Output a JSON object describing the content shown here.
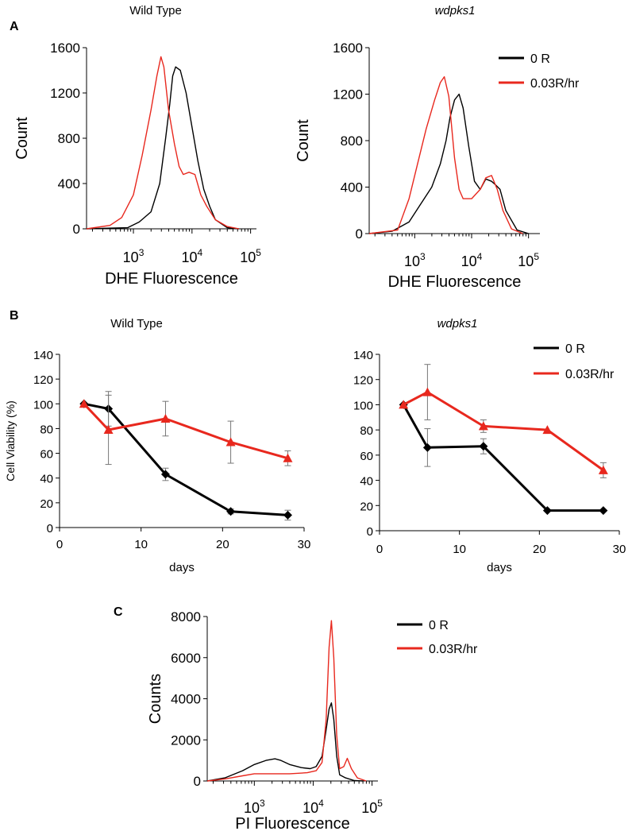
{
  "colors": {
    "control": "#000000",
    "treated": "#e8281e"
  },
  "panel_labels": [
    "A",
    "B",
    "C"
  ],
  "chart_data": [
    {
      "id": "A-wt",
      "type": "line",
      "panel": "A",
      "title": "Wild Type",
      "title_italic": false,
      "xlabel": "DHE Fluorescence",
      "ylabel": "Count",
      "xscale": "log",
      "xlim_log10": [
        2.2,
        5.1
      ],
      "xticks": [
        {
          "pow": "3",
          "v": 3
        },
        {
          "pow": "4",
          "v": 4
        },
        {
          "pow": "5",
          "v": 5
        }
      ],
      "ylim": [
        0,
        1600
      ],
      "yticks": [
        "0",
        "400",
        "800",
        "1200",
        "1600"
      ],
      "legend": null,
      "series": [
        {
          "name": "0 R",
          "color": "#000000",
          "x": [
            2.2,
            2.9,
            3.1,
            3.3,
            3.45,
            3.55,
            3.62,
            3.67,
            3.72,
            3.8,
            3.9,
            4.0,
            4.1,
            4.2,
            4.3,
            4.4,
            4.6,
            4.8
          ],
          "y": [
            0,
            10,
            60,
            150,
            400,
            800,
            1100,
            1350,
            1430,
            1400,
            1200,
            900,
            600,
            350,
            200,
            80,
            10,
            0
          ]
        },
        {
          "name": "0.03R/hr",
          "color": "#e8281e",
          "x": [
            2.2,
            2.6,
            2.8,
            3.0,
            3.15,
            3.3,
            3.4,
            3.47,
            3.52,
            3.6,
            3.7,
            3.78,
            3.85,
            3.95,
            4.05,
            4.15,
            4.25,
            4.4,
            4.6,
            4.8
          ],
          "y": [
            0,
            30,
            100,
            300,
            650,
            1050,
            1350,
            1520,
            1430,
            1050,
            750,
            550,
            480,
            500,
            480,
            300,
            200,
            80,
            20,
            0
          ]
        }
      ]
    },
    {
      "id": "A-mut",
      "type": "line",
      "panel": "A",
      "title": "wdpks1",
      "title_italic": true,
      "xlabel": "DHE Fluorescence",
      "ylabel": "Count",
      "xscale": "log",
      "xlim_log10": [
        2.2,
        5.2
      ],
      "xticks": [
        {
          "pow": "3",
          "v": 3
        },
        {
          "pow": "4",
          "v": 4
        },
        {
          "pow": "5",
          "v": 5
        }
      ],
      "ylim": [
        0,
        1600
      ],
      "yticks": [
        "0",
        "400",
        "800",
        "1200",
        "1600"
      ],
      "legend": [
        {
          "label": "0 R",
          "color": "#000000"
        },
        {
          "label": "0.03R/hr",
          "color": "#e8281e"
        }
      ],
      "series": [
        {
          "name": "0 R",
          "color": "#000000",
          "x": [
            2.2,
            2.6,
            2.9,
            3.1,
            3.3,
            3.45,
            3.55,
            3.62,
            3.7,
            3.78,
            3.85,
            3.95,
            4.05,
            4.15,
            4.25,
            4.35,
            4.42,
            4.5,
            4.6,
            4.8,
            5.0
          ],
          "y": [
            0,
            20,
            100,
            250,
            400,
            600,
            800,
            1000,
            1150,
            1200,
            1080,
            750,
            450,
            380,
            470,
            450,
            420,
            380,
            200,
            30,
            0
          ]
        },
        {
          "name": "0.03R/hr",
          "color": "#e8281e",
          "x": [
            2.2,
            2.7,
            2.9,
            3.05,
            3.2,
            3.35,
            3.45,
            3.52,
            3.6,
            3.7,
            3.78,
            3.85,
            4.0,
            4.15,
            4.25,
            4.35,
            4.45,
            4.55,
            4.7,
            4.9
          ],
          "y": [
            0,
            30,
            300,
            600,
            900,
            1150,
            1300,
            1350,
            1180,
            650,
            380,
            300,
            300,
            380,
            480,
            500,
            380,
            200,
            40,
            0
          ]
        }
      ]
    },
    {
      "id": "B-wt",
      "type": "line",
      "panel": "B",
      "title": "Wild Type",
      "title_italic": false,
      "xlabel": "days",
      "ylabel": "Cell Viability (%)",
      "xlim": [
        0,
        30
      ],
      "xticks": [
        "0",
        "10",
        "20",
        "30"
      ],
      "ylim": [
        0,
        140
      ],
      "yticks": [
        "0",
        "20",
        "40",
        "60",
        "80",
        "100",
        "120",
        "140"
      ],
      "legend": null,
      "series": [
        {
          "name": "0 R",
          "color": "#000000",
          "marker": "diamond",
          "x": [
            3,
            6,
            13,
            21,
            28
          ],
          "y": [
            100,
            96,
            43,
            13,
            10
          ],
          "err": [
            0,
            14,
            5,
            2,
            4
          ]
        },
        {
          "name": "0.03R/hr",
          "color": "#e8281e",
          "marker": "triangle",
          "x": [
            3,
            6,
            13,
            21,
            28
          ],
          "y": [
            100,
            79,
            88,
            69,
            56
          ],
          "err": [
            0,
            28,
            14,
            17,
            6
          ]
        }
      ]
    },
    {
      "id": "B-mut",
      "type": "line",
      "panel": "B",
      "title": "wdpks1",
      "title_italic": true,
      "xlabel": "days",
      "ylabel": "",
      "xlim": [
        0,
        30
      ],
      "xticks": [
        "0",
        "10",
        "20",
        "30"
      ],
      "ylim": [
        0,
        140
      ],
      "yticks": [
        "0",
        "20",
        "40",
        "60",
        "80",
        "100",
        "120",
        "140"
      ],
      "legend": [
        {
          "label": "0 R",
          "color": "#000000"
        },
        {
          "label": "0.03R/hr",
          "color": "#e8281e"
        }
      ],
      "series": [
        {
          "name": "0 R",
          "color": "#000000",
          "marker": "diamond",
          "x": [
            3,
            6,
            13,
            21,
            28
          ],
          "y": [
            100,
            66,
            67,
            16,
            16
          ],
          "err": [
            0,
            15,
            6,
            0,
            0
          ]
        },
        {
          "name": "0.03R/hr",
          "color": "#e8281e",
          "marker": "triangle",
          "x": [
            3,
            6,
            13,
            21,
            28
          ],
          "y": [
            100,
            110,
            83,
            80,
            48
          ],
          "err": [
            0,
            22,
            5,
            0,
            6
          ]
        }
      ]
    },
    {
      "id": "C",
      "type": "line",
      "panel": "C",
      "title": "",
      "title_italic": false,
      "xlabel": "PI Fluorescence",
      "ylabel": "Counts",
      "xscale": "log",
      "xlim_log10": [
        2.2,
        5.1
      ],
      "xticks": [
        {
          "pow": "3",
          "v": 3
        },
        {
          "pow": "4",
          "v": 4
        },
        {
          "pow": "5",
          "v": 5
        }
      ],
      "ylim": [
        0,
        8000
      ],
      "yticks": [
        "0",
        "2000",
        "4000",
        "6000",
        "8000"
      ],
      "legend": [
        {
          "label": "0 R",
          "color": "#000000"
        },
        {
          "label": "0.03R/hr",
          "color": "#e8281e"
        }
      ],
      "series": [
        {
          "name": "0 R",
          "color": "#000000",
          "x": [
            2.2,
            2.5,
            2.8,
            3.0,
            3.2,
            3.35,
            3.45,
            3.6,
            3.8,
            3.95,
            4.05,
            4.15,
            4.22,
            4.27,
            4.31,
            4.35,
            4.4,
            4.45,
            4.55,
            4.7,
            4.85
          ],
          "y": [
            0,
            150,
            500,
            800,
            1000,
            1080,
            1000,
            800,
            650,
            600,
            700,
            1200,
            2500,
            3500,
            3800,
            3000,
            1200,
            300,
            150,
            20,
            0
          ]
        },
        {
          "name": "0.03R/hr",
          "color": "#e8281e",
          "x": [
            2.2,
            2.5,
            2.8,
            3.0,
            3.3,
            3.6,
            3.9,
            4.05,
            4.15,
            4.22,
            4.27,
            4.31,
            4.35,
            4.4,
            4.45,
            4.52,
            4.58,
            4.65,
            4.75,
            4.9
          ],
          "y": [
            0,
            100,
            250,
            350,
            350,
            350,
            400,
            500,
            900,
            3000,
            6500,
            7800,
            6000,
            2200,
            600,
            700,
            1100,
            600,
            150,
            0
          ]
        }
      ]
    }
  ]
}
